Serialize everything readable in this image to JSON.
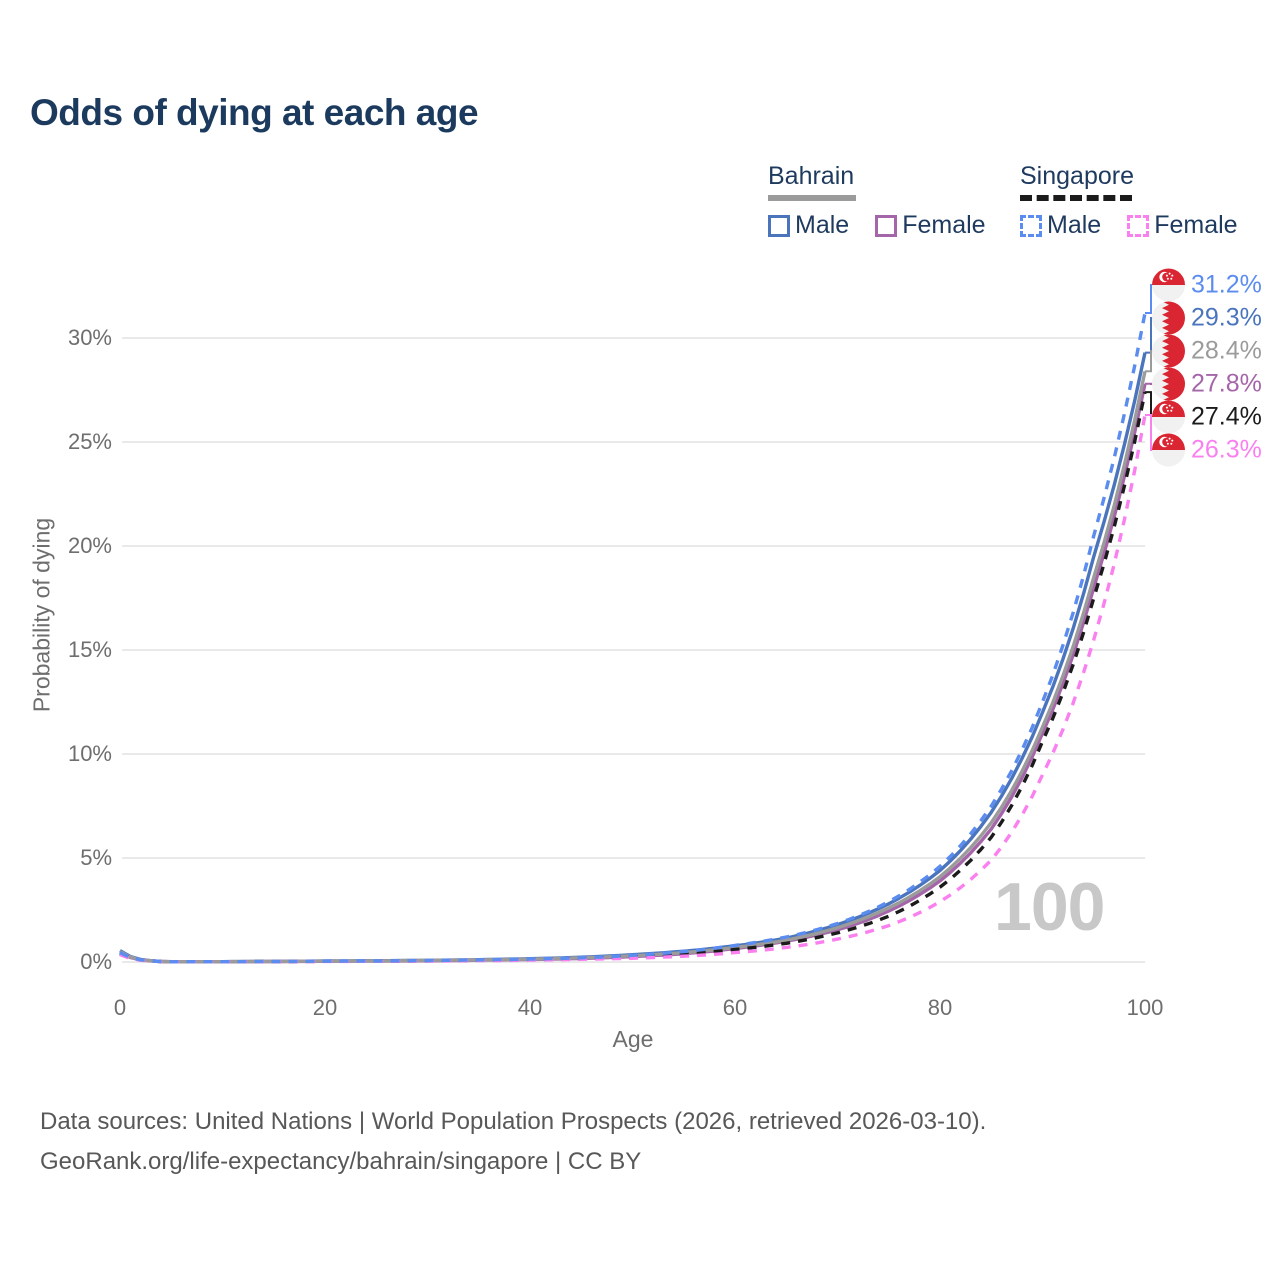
{
  "title": "Odds of dying at each age",
  "watermark": "100",
  "legend": {
    "groups": [
      {
        "country": "Bahrain",
        "line_style": "solid",
        "underline_color": "#9b9b9b",
        "items": [
          {
            "label": "Male",
            "color": "#4a75bd"
          },
          {
            "label": "Female",
            "color": "#a565a9"
          }
        ]
      },
      {
        "country": "Singapore",
        "line_style": "dashed",
        "underline_color": "#1b1b1b",
        "items": [
          {
            "label": "Male",
            "color": "#5b8cf0"
          },
          {
            "label": "Female",
            "color": "#fa80f0"
          }
        ]
      }
    ]
  },
  "axes": {
    "y": {
      "label": "Probability of dying",
      "ticks": [
        "0%",
        "5%",
        "10%",
        "15%",
        "20%",
        "25%",
        "30%"
      ],
      "tick_values": [
        0,
        5,
        10,
        15,
        20,
        25,
        30
      ]
    },
    "x": {
      "label": "Age",
      "ticks": [
        "0",
        "20",
        "40",
        "60",
        "80",
        "100"
      ],
      "tick_values": [
        0,
        20,
        40,
        60,
        80,
        100
      ]
    }
  },
  "chart_data": {
    "type": "line",
    "title": "Odds of dying at each age",
    "xlabel": "Age",
    "ylabel": "Probability of dying",
    "y_unit": "percent",
    "xlim": [
      0,
      100
    ],
    "ylim": [
      0,
      32.5
    ],
    "grid": "horizontal",
    "x": [
      0,
      5,
      10,
      15,
      20,
      25,
      30,
      35,
      40,
      45,
      50,
      55,
      60,
      65,
      70,
      75,
      80,
      85,
      90,
      95,
      100
    ],
    "series": [
      {
        "name": "Bahrain Male",
        "country": "Bahrain",
        "sex": "male",
        "color": "#4a75bd",
        "dash": false,
        "values": [
          0.55,
          0.014,
          0.016,
          0.03,
          0.05,
          0.06,
          0.08,
          0.11,
          0.16,
          0.23,
          0.35,
          0.52,
          0.78,
          1.15,
          1.8,
          2.8,
          4.4,
          7.2,
          12.0,
          19.5,
          29.3
        ],
        "end_label": "29.3%"
      },
      {
        "name": "Bahrain Female",
        "country": "Bahrain",
        "sex": "female",
        "color": "#a565a9",
        "dash": false,
        "values": [
          0.45,
          0.012,
          0.014,
          0.022,
          0.035,
          0.045,
          0.06,
          0.085,
          0.12,
          0.17,
          0.26,
          0.4,
          0.65,
          1.0,
          1.55,
          2.45,
          3.9,
          6.4,
          11.0,
          18.0,
          27.8
        ],
        "end_label": "27.8%"
      },
      {
        "name": "Bahrain Both sexes",
        "country": "Bahrain",
        "sex": "both",
        "color": "#9b9b9b",
        "dash": false,
        "values": [
          0.5,
          0.013,
          0.015,
          0.027,
          0.045,
          0.055,
          0.075,
          0.1,
          0.14,
          0.2,
          0.3,
          0.45,
          0.7,
          1.05,
          1.65,
          2.6,
          4.1,
          6.7,
          11.3,
          18.5,
          28.4
        ],
        "end_label": "28.4%"
      },
      {
        "name": "Singapore Both sexes",
        "country": "Singapore",
        "sex": "both",
        "color": "#1b1b1b",
        "dash": true,
        "values": [
          0.4,
          0.011,
          0.013,
          0.02,
          0.032,
          0.04,
          0.055,
          0.08,
          0.11,
          0.16,
          0.24,
          0.38,
          0.6,
          0.9,
          1.4,
          2.2,
          3.6,
          6.0,
          10.6,
          17.5,
          27.4
        ],
        "end_label": "27.4%"
      },
      {
        "name": "Singapore Female",
        "country": "Singapore",
        "sex": "female",
        "color": "#fa80f0",
        "dash": true,
        "values": [
          0.35,
          0.01,
          0.012,
          0.018,
          0.028,
          0.035,
          0.045,
          0.065,
          0.09,
          0.13,
          0.18,
          0.28,
          0.45,
          0.7,
          1.1,
          1.75,
          2.9,
          4.9,
          9.0,
          15.5,
          26.3
        ],
        "end_label": "26.3%"
      },
      {
        "name": "Singapore Male",
        "country": "Singapore",
        "sex": "male",
        "color": "#5b8cf0",
        "dash": true,
        "values": [
          0.45,
          0.012,
          0.015,
          0.025,
          0.04,
          0.05,
          0.07,
          0.1,
          0.14,
          0.2,
          0.32,
          0.5,
          0.8,
          1.2,
          1.85,
          2.9,
          4.6,
          7.5,
          12.5,
          20.5,
          31.2
        ],
        "end_label": "31.2%"
      }
    ],
    "end_labels": [
      {
        "value": "31.2%",
        "series": "Singapore Male",
        "flag": "singapore",
        "color": "#5b8cf0"
      },
      {
        "value": "29.3%",
        "series": "Bahrain Male",
        "flag": "bahrain",
        "color": "#4a75bd"
      },
      {
        "value": "28.4%",
        "series": "Bahrain Both sexes",
        "flag": "bahrain",
        "color": "#9b9b9b"
      },
      {
        "value": "27.8%",
        "series": "Bahrain Female",
        "flag": "bahrain",
        "color": "#a565a9"
      },
      {
        "value": "27.4%",
        "series": "Singapore Both sexes",
        "flag": "singapore",
        "color": "#1b1b1b"
      },
      {
        "value": "26.3%",
        "series": "Singapore Female",
        "flag": "singapore",
        "color": "#fa80f0"
      }
    ],
    "flag_red": "#d92632",
    "flag_white": "#f1f1f1"
  },
  "footer": {
    "line1": "Data sources: United Nations | World Population Prospects (2026, retrieved 2026-03-10).",
    "line2": "GeoRank.org/life-expectancy/bahrain/singapore | CC BY"
  }
}
